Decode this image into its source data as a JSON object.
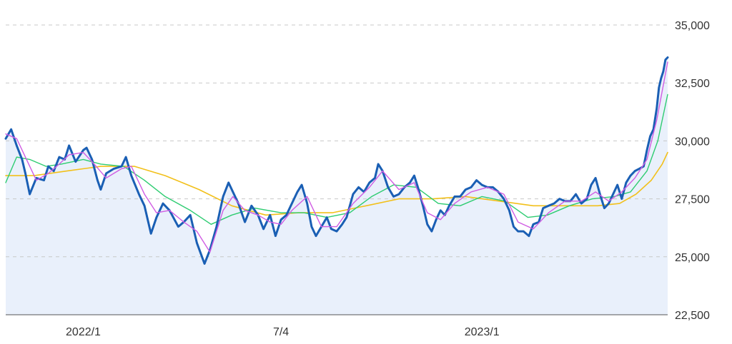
{
  "chart_data": {
    "type": "line",
    "title": "",
    "xlabel": "",
    "ylabel": "",
    "ylim": [
      22500,
      35000
    ],
    "y_ticks": [
      22500,
      25000,
      27500,
      30000,
      32500,
      35000
    ],
    "y_tick_labels": [
      "22,500",
      "25,000",
      "27,500",
      "30,000",
      "32,500",
      "35,000"
    ],
    "x_range": [
      "2021-10-25",
      "2023-06-23"
    ],
    "x_ticks": [
      {
        "date": "2022-01-04",
        "label": "2022/1"
      },
      {
        "date": "2022-07-04",
        "label": "7/4"
      },
      {
        "date": "2023-01-04",
        "label": "2023/1"
      }
    ],
    "grid": "horizontal dashed",
    "y_axis_position": "right",
    "legend": "none",
    "colors": {
      "price": "#1a5fb4",
      "ma_short": "#d05ce3",
      "ma_mid": "#2ecc71",
      "ma_long": "#f2c01a",
      "area_fill": "#e9f0fb",
      "grid": "#c8c8c8",
      "axis": "#555555"
    },
    "series": [
      {
        "key": "price",
        "style": "thick line with light area fill below",
        "points": [
          [
            "2021-10-25",
            30100
          ],
          [
            "2021-10-30",
            30500
          ],
          [
            "2021-11-04",
            29800
          ],
          [
            "2021-11-09",
            29200
          ],
          [
            "2021-11-12",
            28600
          ],
          [
            "2021-11-16",
            27700
          ],
          [
            "2021-11-22",
            28400
          ],
          [
            "2021-11-29",
            28300
          ],
          [
            "2021-12-03",
            28900
          ],
          [
            "2021-12-08",
            28700
          ],
          [
            "2021-12-13",
            29300
          ],
          [
            "2021-12-18",
            29200
          ],
          [
            "2021-12-22",
            29800
          ],
          [
            "2021-12-28",
            29100
          ],
          [
            "2022-01-04",
            29600
          ],
          [
            "2022-01-07",
            29700
          ],
          [
            "2022-01-12",
            29200
          ],
          [
            "2022-01-17",
            28300
          ],
          [
            "2022-01-20",
            27900
          ],
          [
            "2022-01-25",
            28600
          ],
          [
            "2022-02-01",
            28800
          ],
          [
            "2022-02-08",
            28900
          ],
          [
            "2022-02-12",
            29300
          ],
          [
            "2022-02-17",
            28500
          ],
          [
            "2022-02-24",
            27700
          ],
          [
            "2022-03-01",
            27200
          ],
          [
            "2022-03-07",
            26000
          ],
          [
            "2022-03-12",
            26700
          ],
          [
            "2022-03-18",
            27300
          ],
          [
            "2022-03-24",
            27000
          ],
          [
            "2022-04-01",
            26300
          ],
          [
            "2022-04-06",
            26500
          ],
          [
            "2022-04-12",
            26800
          ],
          [
            "2022-04-18",
            25600
          ],
          [
            "2022-04-25",
            24700
          ],
          [
            "2022-04-30",
            25300
          ],
          [
            "2022-05-06",
            26300
          ],
          [
            "2022-05-12",
            27600
          ],
          [
            "2022-05-17",
            28200
          ],
          [
            "2022-05-21",
            27800
          ],
          [
            "2022-05-26",
            27300
          ],
          [
            "2022-06-01",
            26500
          ],
          [
            "2022-06-07",
            27200
          ],
          [
            "2022-06-13",
            26800
          ],
          [
            "2022-06-18",
            26200
          ],
          [
            "2022-06-24",
            26800
          ],
          [
            "2022-06-29",
            25900
          ],
          [
            "2022-07-04",
            26600
          ],
          [
            "2022-07-09",
            26800
          ],
          [
            "2022-07-14",
            27300
          ],
          [
            "2022-07-19",
            27800
          ],
          [
            "2022-07-23",
            28100
          ],
          [
            "2022-07-28",
            27300
          ],
          [
            "2022-08-01",
            26300
          ],
          [
            "2022-08-05",
            25900
          ],
          [
            "2022-08-10",
            26300
          ],
          [
            "2022-08-15",
            26700
          ],
          [
            "2022-08-19",
            26200
          ],
          [
            "2022-08-24",
            26100
          ],
          [
            "2022-08-29",
            26400
          ],
          [
            "2022-09-02",
            26700
          ],
          [
            "2022-09-08",
            27700
          ],
          [
            "2022-09-13",
            28000
          ],
          [
            "2022-09-18",
            27800
          ],
          [
            "2022-09-23",
            28200
          ],
          [
            "2022-09-28",
            28400
          ],
          [
            "2022-10-01",
            29000
          ],
          [
            "2022-10-05",
            28700
          ],
          [
            "2022-10-10",
            28000
          ],
          [
            "2022-10-15",
            27600
          ],
          [
            "2022-10-20",
            27700
          ],
          [
            "2022-10-25",
            28000
          ],
          [
            "2022-10-30",
            28200
          ],
          [
            "2022-11-03",
            28500
          ],
          [
            "2022-11-07",
            27900
          ],
          [
            "2022-11-11",
            27200
          ],
          [
            "2022-11-15",
            26400
          ],
          [
            "2022-11-19",
            26100
          ],
          [
            "2022-11-23",
            26600
          ],
          [
            "2022-11-27",
            27000
          ],
          [
            "2022-12-01",
            26800
          ],
          [
            "2022-12-05",
            27200
          ],
          [
            "2022-12-10",
            27600
          ],
          [
            "2022-12-15",
            27600
          ],
          [
            "2022-12-20",
            27900
          ],
          [
            "2022-12-25",
            28000
          ],
          [
            "2022-12-30",
            28300
          ],
          [
            "2023-01-04",
            28100
          ],
          [
            "2023-01-09",
            28000
          ],
          [
            "2023-01-14",
            28000
          ],
          [
            "2023-01-19",
            27800
          ],
          [
            "2023-01-24",
            27500
          ],
          [
            "2023-01-29",
            27000
          ],
          [
            "2023-02-02",
            26300
          ],
          [
            "2023-02-06",
            26100
          ],
          [
            "2023-02-11",
            26100
          ],
          [
            "2023-02-16",
            25900
          ],
          [
            "2023-02-20",
            26400
          ],
          [
            "2023-02-25",
            26500
          ],
          [
            "2023-03-01",
            27100
          ],
          [
            "2023-03-06",
            27200
          ],
          [
            "2023-03-11",
            27300
          ],
          [
            "2023-03-16",
            27500
          ],
          [
            "2023-03-21",
            27400
          ],
          [
            "2023-03-26",
            27400
          ],
          [
            "2023-03-31",
            27700
          ],
          [
            "2023-04-05",
            27300
          ],
          [
            "2023-04-10",
            27500
          ],
          [
            "2023-04-14",
            28100
          ],
          [
            "2023-04-18",
            28400
          ],
          [
            "2023-04-22",
            27700
          ],
          [
            "2023-04-26",
            27100
          ],
          [
            "2023-04-30",
            27300
          ],
          [
            "2023-05-04",
            27700
          ],
          [
            "2023-05-08",
            28100
          ],
          [
            "2023-05-12",
            27500
          ],
          [
            "2023-05-16",
            28200
          ],
          [
            "2023-05-20",
            28500
          ],
          [
            "2023-05-24",
            28700
          ],
          [
            "2023-05-28",
            28800
          ],
          [
            "2023-06-01",
            28900
          ],
          [
            "2023-06-04",
            29600
          ],
          [
            "2023-06-07",
            30200
          ],
          [
            "2023-06-10",
            30500
          ],
          [
            "2023-06-13",
            31400
          ],
          [
            "2023-06-15",
            32300
          ],
          [
            "2023-06-17",
            32700
          ],
          [
            "2023-06-19",
            33000
          ],
          [
            "2023-06-21",
            33500
          ],
          [
            "2023-06-23",
            33600
          ]
        ]
      },
      {
        "key": "ma_short",
        "style": "thin line",
        "points": [
          [
            "2021-10-25",
            30300
          ],
          [
            "2021-11-04",
            30100
          ],
          [
            "2021-11-12",
            29300
          ],
          [
            "2021-11-22",
            28300
          ],
          [
            "2021-12-03",
            28600
          ],
          [
            "2021-12-13",
            29000
          ],
          [
            "2021-12-22",
            29400
          ],
          [
            "2022-01-04",
            29500
          ],
          [
            "2022-01-14",
            29000
          ],
          [
            "2022-01-25",
            28400
          ],
          [
            "2022-02-08",
            28800
          ],
          [
            "2022-02-17",
            28900
          ],
          [
            "2022-03-01",
            27700
          ],
          [
            "2022-03-12",
            26900
          ],
          [
            "2022-03-24",
            27000
          ],
          [
            "2022-04-06",
            26500
          ],
          [
            "2022-04-18",
            26100
          ],
          [
            "2022-04-30",
            25200
          ],
          [
            "2022-05-12",
            27000
          ],
          [
            "2022-05-21",
            27600
          ],
          [
            "2022-06-01",
            27000
          ],
          [
            "2022-06-13",
            26800
          ],
          [
            "2022-06-24",
            26500
          ],
          [
            "2022-07-04",
            26400
          ],
          [
            "2022-07-14",
            27000
          ],
          [
            "2022-07-28",
            27600
          ],
          [
            "2022-08-10",
            26300
          ],
          [
            "2022-08-24",
            26300
          ],
          [
            "2022-09-08",
            27300
          ],
          [
            "2022-09-23",
            28000
          ],
          [
            "2022-10-05",
            28700
          ],
          [
            "2022-10-20",
            27900
          ],
          [
            "2022-11-03",
            28200
          ],
          [
            "2022-11-15",
            26900
          ],
          [
            "2022-11-27",
            26600
          ],
          [
            "2022-12-10",
            27300
          ],
          [
            "2022-12-25",
            27800
          ],
          [
            "2023-01-09",
            28000
          ],
          [
            "2023-01-24",
            27700
          ],
          [
            "2023-02-06",
            26500
          ],
          [
            "2023-02-20",
            26200
          ],
          [
            "2023-03-06",
            26900
          ],
          [
            "2023-03-21",
            27400
          ],
          [
            "2023-04-05",
            27400
          ],
          [
            "2023-04-18",
            27800
          ],
          [
            "2023-04-30",
            27400
          ],
          [
            "2023-05-12",
            27800
          ],
          [
            "2023-05-24",
            28400
          ],
          [
            "2023-06-04",
            29200
          ],
          [
            "2023-06-13",
            30900
          ],
          [
            "2023-06-19",
            32400
          ],
          [
            "2023-06-23",
            33400
          ]
        ]
      },
      {
        "key": "ma_mid",
        "style": "thin line",
        "points": [
          [
            "2021-10-25",
            28200
          ],
          [
            "2021-11-04",
            29300
          ],
          [
            "2021-11-16",
            29200
          ],
          [
            "2021-12-01",
            28900
          ],
          [
            "2021-12-15",
            29000
          ],
          [
            "2022-01-04",
            29200
          ],
          [
            "2022-01-20",
            29000
          ],
          [
            "2022-02-10",
            28900
          ],
          [
            "2022-03-01",
            28300
          ],
          [
            "2022-03-20",
            27600
          ],
          [
            "2022-04-12",
            27000
          ],
          [
            "2022-05-01",
            26400
          ],
          [
            "2022-05-20",
            26800
          ],
          [
            "2022-06-10",
            27100
          ],
          [
            "2022-07-04",
            26900
          ],
          [
            "2022-07-25",
            26900
          ],
          [
            "2022-08-15",
            26700
          ],
          [
            "2022-09-05",
            26900
          ],
          [
            "2022-09-25",
            27600
          ],
          [
            "2022-10-15",
            28100
          ],
          [
            "2022-11-05",
            28000
          ],
          [
            "2022-11-25",
            27300
          ],
          [
            "2022-12-15",
            27200
          ],
          [
            "2023-01-04",
            27600
          ],
          [
            "2023-01-25",
            27400
          ],
          [
            "2023-02-15",
            26700
          ],
          [
            "2023-03-05",
            26800
          ],
          [
            "2023-03-25",
            27200
          ],
          [
            "2023-04-15",
            27500
          ],
          [
            "2023-05-05",
            27600
          ],
          [
            "2023-05-20",
            27800
          ],
          [
            "2023-06-04",
            28700
          ],
          [
            "2023-06-14",
            30000
          ],
          [
            "2023-06-23",
            32000
          ]
        ]
      },
      {
        "key": "ma_long",
        "style": "thin line",
        "points": [
          [
            "2021-10-25",
            28500
          ],
          [
            "2021-11-20",
            28500
          ],
          [
            "2021-12-20",
            28700
          ],
          [
            "2022-01-20",
            28900
          ],
          [
            "2022-02-20",
            28900
          ],
          [
            "2022-03-20",
            28500
          ],
          [
            "2022-04-20",
            27900
          ],
          [
            "2022-05-20",
            27200
          ],
          [
            "2022-06-20",
            26800
          ],
          [
            "2022-07-20",
            26900
          ],
          [
            "2022-08-20",
            26900
          ],
          [
            "2022-09-20",
            27200
          ],
          [
            "2022-10-20",
            27500
          ],
          [
            "2022-11-20",
            27500
          ],
          [
            "2022-12-20",
            27600
          ],
          [
            "2023-01-20",
            27400
          ],
          [
            "2023-02-20",
            27200
          ],
          [
            "2023-03-20",
            27200
          ],
          [
            "2023-04-20",
            27200
          ],
          [
            "2023-05-10",
            27300
          ],
          [
            "2023-05-25",
            27700
          ],
          [
            "2023-06-08",
            28300
          ],
          [
            "2023-06-18",
            29000
          ],
          [
            "2023-06-23",
            29500
          ]
        ]
      }
    ]
  }
}
